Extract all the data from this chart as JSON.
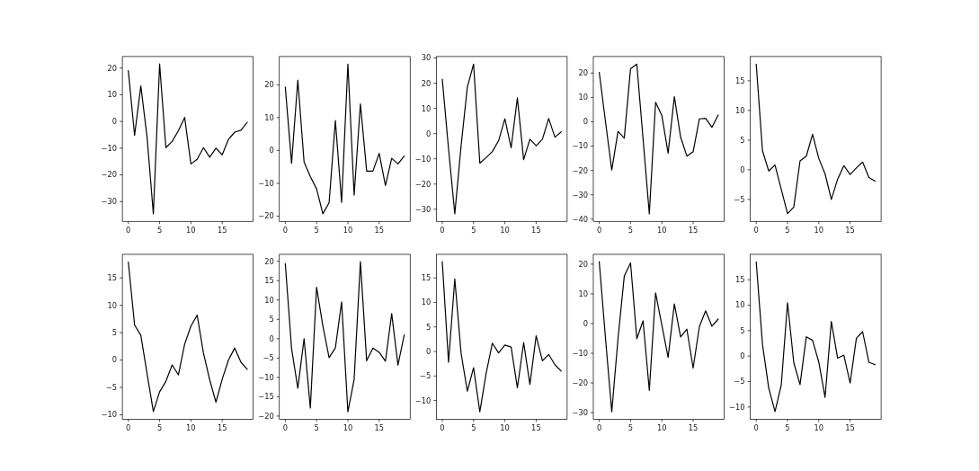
{
  "chart_data": [
    {
      "type": "line",
      "x": [
        0,
        1,
        2,
        3,
        4,
        5,
        6,
        7,
        8,
        9,
        10,
        11,
        12,
        13,
        14,
        15,
        16,
        17,
        18,
        19
      ],
      "values": [
        19,
        -5.2,
        13.3,
        -6,
        -34.6,
        21.5,
        -9.8,
        -7.5,
        -3.5,
        1.5,
        -15.9,
        -14.2,
        -9.8,
        -13.4,
        -10,
        -12.5,
        -6.7,
        -4,
        -3.3,
        -0.3
      ],
      "color": "#000000",
      "xlim": [
        -0.95,
        19.95
      ],
      "ylim": [
        -37.4,
        24.3
      ],
      "xticks": [
        0,
        5,
        10,
        15
      ],
      "yticks": [
        -30,
        -20,
        -10,
        0,
        10,
        20
      ]
    },
    {
      "type": "line",
      "x": [
        0,
        1,
        2,
        3,
        4,
        5,
        6,
        7,
        8,
        9,
        10,
        11,
        12,
        13,
        14,
        15,
        16,
        17,
        18,
        19
      ],
      "values": [
        19.3,
        -3.9,
        21.4,
        -3.5,
        -8,
        -11.7,
        -19.3,
        -15.9,
        9.1,
        -15.8,
        26.3,
        -13.6,
        14.2,
        -6.3,
        -6.3,
        -0.9,
        -10.7,
        -2.4,
        -4.1,
        -1.7
      ],
      "color": "#000000",
      "xlim": [
        -0.95,
        19.95
      ],
      "ylim": [
        -21.6,
        28.6
      ],
      "xticks": [
        0,
        5,
        10,
        15
      ],
      "yticks": [
        -20,
        -10,
        0,
        10,
        20
      ]
    },
    {
      "type": "line",
      "x": [
        0,
        1,
        2,
        3,
        4,
        5,
        6,
        7,
        8,
        9,
        10,
        11,
        12,
        13,
        14,
        15,
        16,
        17,
        18,
        19
      ],
      "values": [
        21.6,
        -6,
        -31.8,
        -5,
        18.4,
        27.6,
        -11.7,
        -9.5,
        -7.1,
        -2.8,
        5.9,
        -5.6,
        14.2,
        -10.3,
        -2.2,
        -4.8,
        -2.2,
        6,
        -1.4,
        0.7
      ],
      "color": "#000000",
      "xlim": [
        -0.95,
        19.95
      ],
      "ylim": [
        -34.8,
        30.6
      ],
      "xticks": [
        0,
        5,
        10,
        15
      ],
      "yticks": [
        -30,
        -20,
        -10,
        0,
        10,
        20,
        30
      ]
    },
    {
      "type": "line",
      "x": [
        0,
        1,
        2,
        3,
        4,
        5,
        6,
        7,
        8,
        9,
        10,
        11,
        12,
        13,
        14,
        15,
        16,
        17,
        18,
        19
      ],
      "values": [
        20.3,
        0,
        -19.8,
        -3.9,
        -6.7,
        21.8,
        23.7,
        -7,
        -37.8,
        8,
        2.6,
        -12.9,
        10.3,
        -6.3,
        -14.1,
        -12.3,
        1.2,
        1.4,
        -2.3,
        2.8
      ],
      "color": "#000000",
      "xlim": [
        -0.95,
        19.95
      ],
      "ylim": [
        -40.9,
        26.8
      ],
      "xticks": [
        0,
        5,
        10,
        15
      ],
      "yticks": [
        -40,
        -30,
        -20,
        -10,
        0,
        10,
        20
      ]
    },
    {
      "type": "line",
      "x": [
        0,
        1,
        2,
        3,
        4,
        5,
        6,
        7,
        8,
        9,
        10,
        11,
        12,
        13,
        14,
        15,
        16,
        17,
        18,
        19
      ],
      "values": [
        17.8,
        3.2,
        -0.2,
        0.8,
        -3.3,
        -7.4,
        -6.3,
        1.5,
        2.3,
        6,
        1.9,
        -0.7,
        -5,
        -1.6,
        0.7,
        -0.8,
        0.3,
        1.3,
        -1.3,
        -1.9
      ],
      "color": "#000000",
      "xlim": [
        -0.95,
        19.95
      ],
      "ylim": [
        -8.7,
        19.1
      ],
      "xticks": [
        0,
        5,
        10,
        15
      ],
      "yticks": [
        -5,
        0,
        5,
        10,
        15
      ]
    },
    {
      "type": "line",
      "x": [
        0,
        1,
        2,
        3,
        4,
        5,
        6,
        7,
        8,
        9,
        10,
        11,
        12,
        13,
        14,
        15,
        16,
        17,
        18,
        19
      ],
      "values": [
        17.9,
        6.4,
        4.5,
        -2.5,
        -9.4,
        -5.8,
        -3.9,
        -0.9,
        -2.7,
        2.9,
        6.2,
        8.2,
        1.3,
        -3.6,
        -7.7,
        -3.5,
        0,
        2.2,
        -0.4,
        -1.7
      ],
      "color": "#000000",
      "xlim": [
        -0.95,
        19.95
      ],
      "ylim": [
        -10.8,
        19.3
      ],
      "xticks": [
        0,
        5,
        10,
        15
      ],
      "yticks": [
        -10,
        -5,
        0,
        5,
        10,
        15
      ]
    },
    {
      "type": "line",
      "x": [
        0,
        1,
        2,
        3,
        4,
        5,
        6,
        7,
        8,
        9,
        10,
        11,
        12,
        13,
        14,
        15,
        16,
        17,
        18,
        19
      ],
      "values": [
        19.4,
        -2.5,
        -12.8,
        0,
        -17.9,
        13.3,
        3.3,
        -4.9,
        -2.4,
        9.5,
        -18.9,
        -10.5,
        19.9,
        -5.7,
        -2.4,
        -3.5,
        -5.8,
        6.5,
        -6.8,
        1
      ],
      "color": "#000000",
      "xlim": [
        -0.95,
        19.95
      ],
      "ylim": [
        -20.8,
        21.8
      ],
      "xticks": [
        0,
        5,
        10,
        15
      ],
      "yticks": [
        -20,
        -15,
        -10,
        -5,
        0,
        5,
        10,
        15,
        20
      ]
    },
    {
      "type": "line",
      "x": [
        0,
        1,
        2,
        3,
        4,
        5,
        6,
        7,
        8,
        9,
        10,
        11,
        12,
        13,
        14,
        15,
        16,
        17,
        18,
        19
      ],
      "values": [
        18.3,
        -2.2,
        14.8,
        -0.3,
        -8.1,
        -3.3,
        -12.3,
        -4.5,
        1.7,
        -0.3,
        1.3,
        0.9,
        -7.4,
        1.8,
        -6.7,
        3.2,
        -1.9,
        -0.6,
        -2.7,
        -4
      ],
      "color": "#000000",
      "xlim": [
        -0.95,
        19.95
      ],
      "ylim": [
        -13.8,
        19.8
      ],
      "xticks": [
        0,
        5,
        10,
        15
      ],
      "yticks": [
        -10,
        -5,
        0,
        5,
        10,
        15
      ]
    },
    {
      "type": "line",
      "x": [
        0,
        1,
        2,
        3,
        4,
        5,
        6,
        7,
        8,
        9,
        10,
        11,
        12,
        13,
        14,
        15,
        16,
        17,
        18,
        19
      ],
      "values": [
        20.8,
        -5,
        -29.7,
        -5,
        16,
        20.4,
        -5.1,
        0.9,
        -22.5,
        10.3,
        -0.5,
        -11.4,
        6.6,
        -4.5,
        -1.9,
        -15,
        -1,
        4.3,
        -0.9,
        1.5
      ],
      "color": "#000000",
      "xlim": [
        -0.95,
        19.95
      ],
      "ylim": [
        -32.2,
        23.3
      ],
      "xticks": [
        0,
        5,
        10,
        15
      ],
      "yticks": [
        -30,
        -20,
        -10,
        0,
        10,
        20
      ]
    },
    {
      "type": "line",
      "x": [
        0,
        1,
        2,
        3,
        4,
        5,
        6,
        7,
        8,
        9,
        10,
        11,
        12,
        13,
        14,
        15,
        16,
        17,
        18,
        19
      ],
      "values": [
        18.5,
        2.3,
        -6.3,
        -10.9,
        -5.7,
        10.5,
        -1.3,
        -5.6,
        3.8,
        3.1,
        -1.2,
        -8.1,
        6.8,
        -0.4,
        0.2,
        -5.3,
        3.5,
        4.8,
        -1.2,
        -1.7
      ],
      "color": "#000000",
      "xlim": [
        -0.95,
        19.95
      ],
      "ylim": [
        -12.4,
        20
      ],
      "xticks": [
        0,
        5,
        10,
        15
      ],
      "yticks": [
        -10,
        -5,
        0,
        5,
        10,
        15
      ]
    }
  ]
}
